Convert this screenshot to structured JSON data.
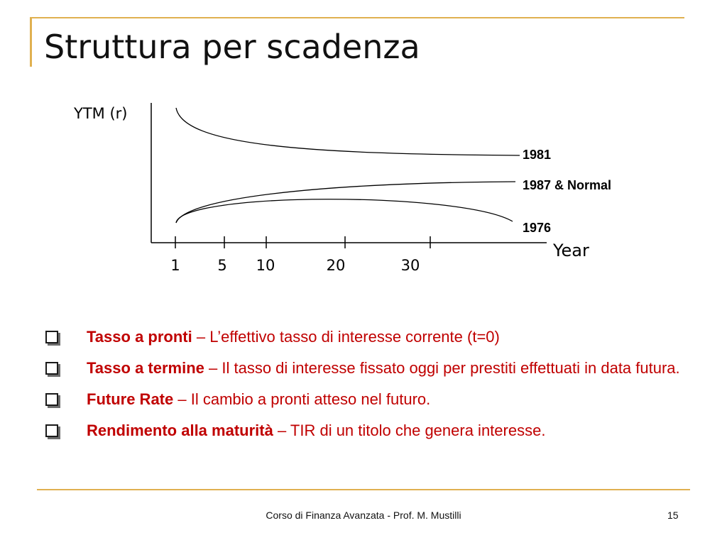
{
  "slide": {
    "title": "Struttura per scadenza",
    "footer": "Corso di Finanza Avanzata - Prof. M. Mustilli",
    "page_number": "15",
    "accent_color": "#e0b050",
    "text_color": "#c00000"
  },
  "diagram": {
    "ylabel": "YTM (r)",
    "xlabel": "Year",
    "ticks": [
      "1",
      "5",
      "10",
      "20",
      "30"
    ],
    "curves": [
      {
        "label": "1981",
        "shape": "inverted"
      },
      {
        "label": "1987 & Normal",
        "shape": "normal"
      },
      {
        "label": "1976",
        "shape": "humped"
      }
    ]
  },
  "bullets": [
    {
      "term": "Tasso a pronti",
      "sep": " – ",
      "text": "L’effettivo tasso di interesse corrente (t=0)"
    },
    {
      "term": "Tasso a termine",
      "sep": " – ",
      "text": "Il tasso di interesse fissato oggi per prestiti effettuati in data futura."
    },
    {
      "term": "Future Rate",
      "sep": " – ",
      "text": "Il cambio a pronti atteso nel futuro."
    },
    {
      "term": "Rendimento alla maturità",
      "sep": " – ",
      "text": "TIR di un titolo che genera interesse."
    }
  ]
}
